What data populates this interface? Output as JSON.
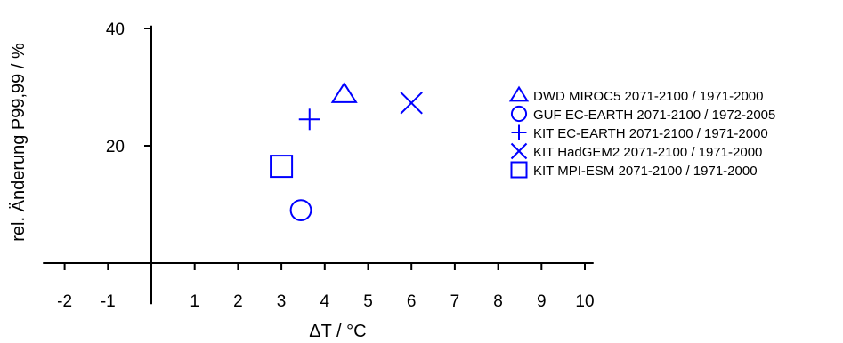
{
  "chart_data": {
    "type": "scatter",
    "xlabel": "ΔT / °C",
    "ylabel": "rel. Änderung P99,99 / %",
    "xlim": [
      -2.5,
      10.2
    ],
    "ylim": [
      -7,
      40.5
    ],
    "x_ticks": [
      -2,
      -1,
      1,
      2,
      3,
      4,
      5,
      6,
      7,
      8,
      9,
      10
    ],
    "y_ticks": [
      20,
      40
    ],
    "grid": false,
    "legend_position": "right",
    "series": [
      {
        "name": "DWD MIROC5 2071-2100 / 1971-2000",
        "marker": "triangle",
        "color": "#0000ff",
        "x": [
          4.45
        ],
        "y": [
          28.8
        ]
      },
      {
        "name": "GUF EC-EARTH 2071-2100 / 1972-2005",
        "marker": "circle",
        "color": "#0000ff",
        "x": [
          3.45
        ],
        "y": [
          9.0
        ]
      },
      {
        "name": "KIT EC-EARTH 2071-2100 / 1971-2000",
        "marker": "plus",
        "color": "#0000ff",
        "x": [
          3.65
        ],
        "y": [
          24.5
        ]
      },
      {
        "name": "KIT HadGEM2 2071-2100 / 1971-2000",
        "marker": "x",
        "color": "#0000ff",
        "x": [
          6.0
        ],
        "y": [
          27.3
        ]
      },
      {
        "name": "KIT MPI-ESM 2071-2100 / 1971-2000",
        "marker": "square",
        "color": "#0000ff",
        "x": [
          3.0
        ],
        "y": [
          16.5
        ]
      }
    ]
  }
}
